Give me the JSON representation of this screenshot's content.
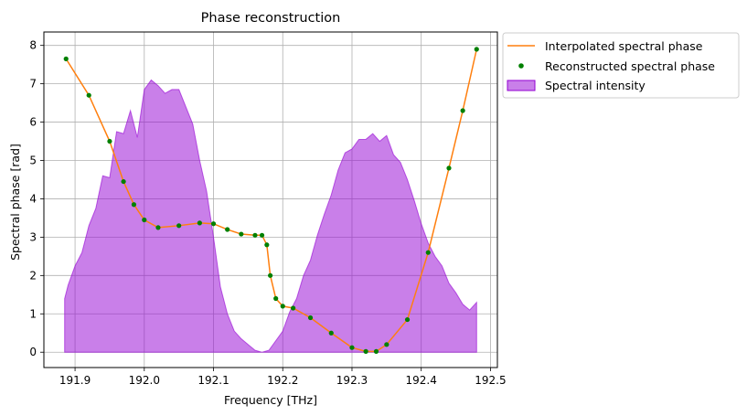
{
  "chart_data": {
    "type": "line",
    "title": "Phase reconstruction",
    "xlabel": "Frequency [THz]",
    "ylabel": "Spectral phase [rad]",
    "xlim": [
      191.855,
      192.51
    ],
    "ylim": [
      -0.4,
      8.35
    ],
    "grid": true,
    "legend_placement": "outside-top-right",
    "x_ticks": [
      {
        "value": 191.9,
        "label": "191.9"
      },
      {
        "value": 192.0,
        "label": "192.0"
      },
      {
        "value": 192.1,
        "label": "192.1"
      },
      {
        "value": 192.2,
        "label": "192.2"
      },
      {
        "value": 192.3,
        "label": "192.3"
      },
      {
        "value": 192.4,
        "label": "192.4"
      },
      {
        "value": 192.5,
        "label": "192.5"
      }
    ],
    "y_ticks": [
      {
        "value": 0,
        "label": "0"
      },
      {
        "value": 1,
        "label": "1"
      },
      {
        "value": 2,
        "label": "2"
      },
      {
        "value": 3,
        "label": "3"
      },
      {
        "value": 4,
        "label": "4"
      },
      {
        "value": 5,
        "label": "5"
      },
      {
        "value": 6,
        "label": "6"
      },
      {
        "value": 7,
        "label": "7"
      },
      {
        "value": 8,
        "label": "8"
      }
    ],
    "series": [
      {
        "name": "Interpolated spectral phase",
        "kind": "line",
        "color": "#ff7f0e",
        "x": [
          191.887,
          191.92,
          191.95,
          191.97,
          191.985,
          192.0,
          192.02,
          192.05,
          192.08,
          192.1,
          192.12,
          192.14,
          192.16,
          192.17,
          192.177,
          192.182,
          192.19,
          192.2,
          192.215,
          192.24,
          192.27,
          192.3,
          192.32,
          192.335,
          192.35,
          192.38,
          192.41,
          192.44,
          192.46,
          192.48
        ],
        "y": [
          7.65,
          6.7,
          5.5,
          4.45,
          3.85,
          3.45,
          3.25,
          3.3,
          3.37,
          3.35,
          3.2,
          3.08,
          3.05,
          3.05,
          2.8,
          2.0,
          1.4,
          1.2,
          1.15,
          0.9,
          0.5,
          0.12,
          0.02,
          0.02,
          0.2,
          0.85,
          2.6,
          4.8,
          6.3,
          7.9
        ]
      },
      {
        "name": "Reconstructed spectral phase",
        "kind": "scatter",
        "color": "#008000",
        "x": [
          191.887,
          191.92,
          191.95,
          191.97,
          191.985,
          192.0,
          192.02,
          192.05,
          192.08,
          192.1,
          192.12,
          192.14,
          192.16,
          192.17,
          192.177,
          192.182,
          192.19,
          192.2,
          192.215,
          192.24,
          192.27,
          192.3,
          192.32,
          192.335,
          192.35,
          192.38,
          192.41,
          192.44,
          192.46,
          192.48
        ],
        "y": [
          7.65,
          6.7,
          5.5,
          4.45,
          3.85,
          3.45,
          3.25,
          3.3,
          3.37,
          3.35,
          3.2,
          3.08,
          3.05,
          3.05,
          2.8,
          2.0,
          1.4,
          1.2,
          1.15,
          0.9,
          0.5,
          0.12,
          0.02,
          0.02,
          0.2,
          0.85,
          2.6,
          4.8,
          6.3,
          7.9
        ]
      },
      {
        "name": "Spectral intensity",
        "kind": "area",
        "color": "#9400d3",
        "x": [
          191.885,
          191.89,
          191.9,
          191.91,
          191.92,
          191.93,
          191.94,
          191.95,
          191.96,
          191.97,
          191.98,
          191.99,
          192.0,
          192.01,
          192.02,
          192.03,
          192.04,
          192.05,
          192.06,
          192.07,
          192.08,
          192.09,
          192.1,
          192.11,
          192.12,
          192.13,
          192.14,
          192.15,
          192.16,
          192.17,
          192.18,
          192.19,
          192.2,
          192.21,
          192.22,
          192.23,
          192.24,
          192.25,
          192.26,
          192.27,
          192.28,
          192.29,
          192.3,
          192.31,
          192.32,
          192.33,
          192.34,
          192.35,
          192.36,
          192.37,
          192.38,
          192.39,
          192.4,
          192.41,
          192.42,
          192.43,
          192.44,
          192.45,
          192.46,
          192.47,
          192.48
        ],
        "y": [
          1.4,
          1.75,
          2.25,
          2.6,
          3.3,
          3.75,
          4.6,
          4.55,
          5.75,
          5.7,
          6.3,
          5.6,
          6.85,
          7.1,
          6.95,
          6.75,
          6.85,
          6.85,
          6.4,
          5.95,
          5.0,
          4.2,
          3.0,
          1.7,
          1.0,
          0.55,
          0.35,
          0.2,
          0.05,
          0.0,
          0.05,
          0.3,
          0.55,
          1.05,
          1.4,
          2.0,
          2.4,
          3.05,
          3.6,
          4.1,
          4.75,
          5.2,
          5.3,
          5.55,
          5.55,
          5.7,
          5.5,
          5.65,
          5.15,
          4.95,
          4.5,
          3.95,
          3.35,
          2.85,
          2.5,
          2.25,
          1.8,
          1.55,
          1.25,
          1.1,
          1.3
        ]
      }
    ]
  }
}
